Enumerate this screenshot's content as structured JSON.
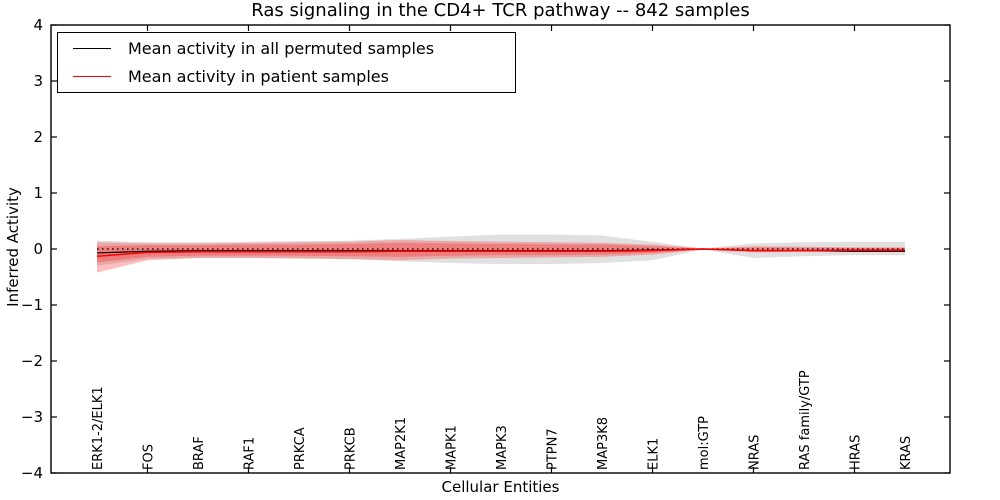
{
  "chart_data": {
    "type": "line",
    "title": "Ras signaling in the CD4+ TCR pathway -- 842 samples",
    "xlabel": "Cellular Entities",
    "ylabel": "Inferred Activity",
    "ylim": [
      -4,
      4
    ],
    "ytick_values": [
      -4,
      -3,
      -2,
      -1,
      0,
      1,
      2,
      3,
      4
    ],
    "ytick_labels": [
      "−4",
      "−3",
      "−2",
      "−1",
      "0",
      "1",
      "2",
      "3",
      "4"
    ],
    "categories": [
      "ERK1-2/ELK1",
      "FOS",
      "BRAF",
      "RAF1",
      "PRKCA",
      "PRKCB",
      "MAP2K1",
      "MAPK1",
      "MAPK3",
      "PTPN7",
      "MAP3K8",
      "ELK1",
      "mol:GTP",
      "NRAS",
      "RAS family/GTP",
      "HRAS",
      "KRAS"
    ],
    "x_axis_tick_indices": [
      1,
      3,
      5,
      7,
      9,
      11,
      13,
      15
    ],
    "grid": false,
    "zero_reference": {
      "value": 0,
      "style": "dotted",
      "color": "#000000"
    },
    "series": [
      {
        "name": "Mean activity in all permuted samples",
        "color": "#000000",
        "values": [
          -0.07,
          -0.04,
          -0.03,
          -0.03,
          -0.03,
          -0.03,
          -0.03,
          -0.03,
          -0.03,
          -0.03,
          -0.03,
          -0.02,
          0.0,
          -0.03,
          -0.03,
          -0.04,
          -0.04
        ]
      },
      {
        "name": "Mean activity in patient samples",
        "color": "#ff0000",
        "values": [
          -0.13,
          -0.06,
          -0.05,
          -0.05,
          -0.05,
          -0.05,
          -0.04,
          -0.04,
          -0.04,
          -0.04,
          -0.04,
          -0.03,
          0.0,
          -0.03,
          -0.03,
          -0.02,
          -0.02
        ]
      }
    ],
    "bands": [
      {
        "name": "permuted-std-band",
        "color": "#000000",
        "opacity": 0.12,
        "hi": [
          0.15,
          0.12,
          0.12,
          0.13,
          0.14,
          0.15,
          0.18,
          0.22,
          0.26,
          0.26,
          0.24,
          0.13,
          0.01,
          0.1,
          0.12,
          0.13,
          0.13
        ],
        "lo": [
          -0.3,
          -0.18,
          -0.16,
          -0.16,
          -0.17,
          -0.18,
          -0.22,
          -0.25,
          -0.27,
          -0.27,
          -0.25,
          -0.2,
          -0.01,
          -0.16,
          -0.13,
          -0.11,
          -0.11
        ]
      },
      {
        "name": "patient-std-outer-band",
        "color": "#ff0000",
        "opacity": 0.25,
        "hi": [
          0.12,
          0.1,
          0.1,
          0.11,
          0.12,
          0.13,
          0.16,
          0.14,
          0.13,
          0.12,
          0.11,
          0.08,
          0.01,
          0.05,
          0.04,
          0.03,
          0.03
        ],
        "lo": [
          -0.42,
          -0.2,
          -0.16,
          -0.16,
          -0.17,
          -0.18,
          -0.2,
          -0.17,
          -0.16,
          -0.15,
          -0.14,
          -0.1,
          -0.01,
          -0.06,
          -0.05,
          -0.04,
          -0.04
        ]
      },
      {
        "name": "patient-std-inner-band",
        "color": "#ff0000",
        "opacity": 0.25,
        "hi": [
          0.05,
          0.07,
          0.07,
          0.08,
          0.08,
          0.09,
          0.11,
          0.1,
          0.09,
          0.08,
          0.08,
          0.05,
          0.005,
          0.03,
          0.025,
          0.02,
          0.02
        ],
        "lo": [
          -0.24,
          -0.14,
          -0.12,
          -0.12,
          -0.12,
          -0.13,
          -0.14,
          -0.12,
          -0.11,
          -0.11,
          -0.1,
          -0.07,
          -0.005,
          -0.04,
          -0.03,
          -0.03,
          -0.03
        ]
      }
    ],
    "legend": {
      "position": "upper-left",
      "entries": [
        {
          "label": "Mean activity in all permuted samples",
          "color": "#000000"
        },
        {
          "label": "Mean activity in patient samples",
          "color": "#ff0000"
        }
      ]
    }
  }
}
